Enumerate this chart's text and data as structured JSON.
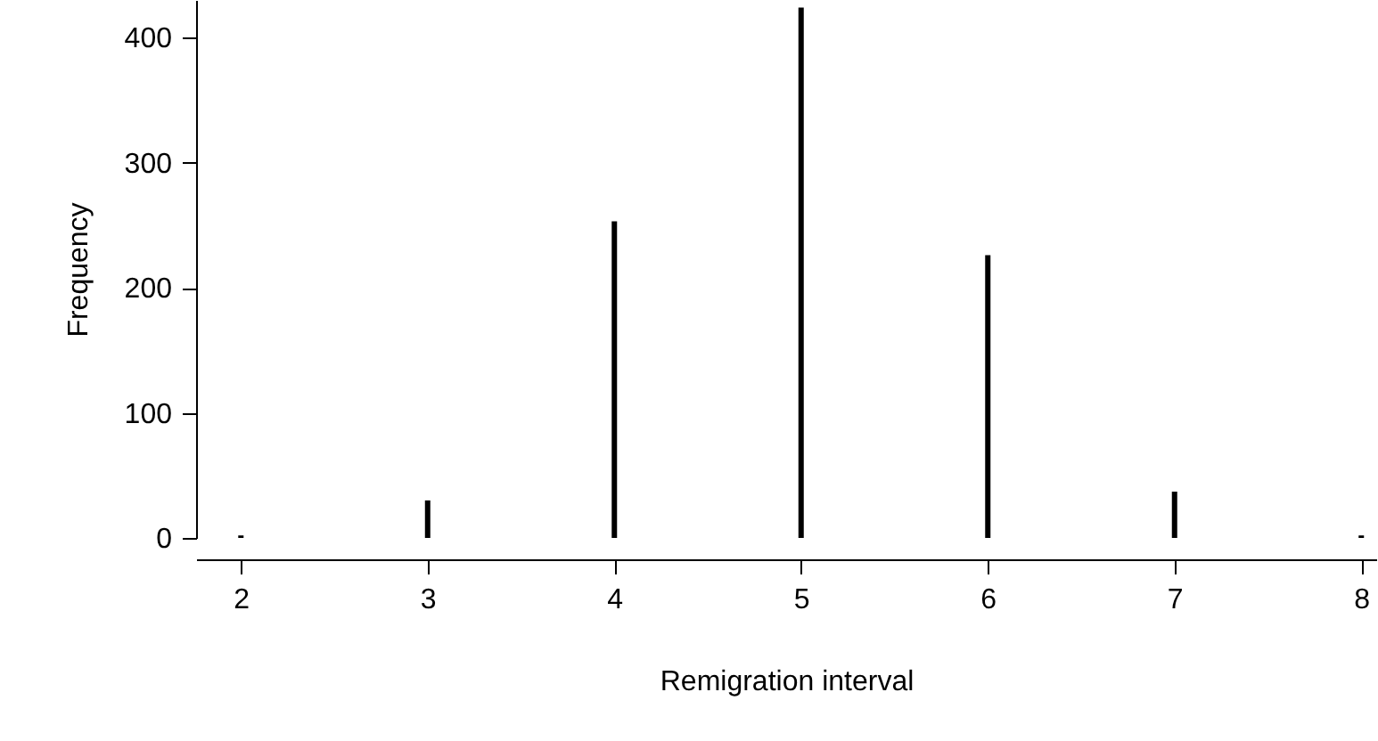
{
  "chart_data": {
    "type": "bar",
    "xlabel": "Remigration interval",
    "ylabel": "Frequency",
    "x": [
      2,
      3,
      4,
      5,
      6,
      7,
      8
    ],
    "values": [
      2,
      30,
      253,
      424,
      226,
      37,
      2
    ],
    "color": "#000000",
    "xlim": [
      1.76,
      8.08
    ],
    "xticks": [
      2,
      3,
      4,
      5,
      6,
      7,
      8
    ],
    "ylim": [
      0,
      430
    ],
    "yticks": [
      0,
      100,
      200,
      300,
      400
    ],
    "grid": false
  }
}
